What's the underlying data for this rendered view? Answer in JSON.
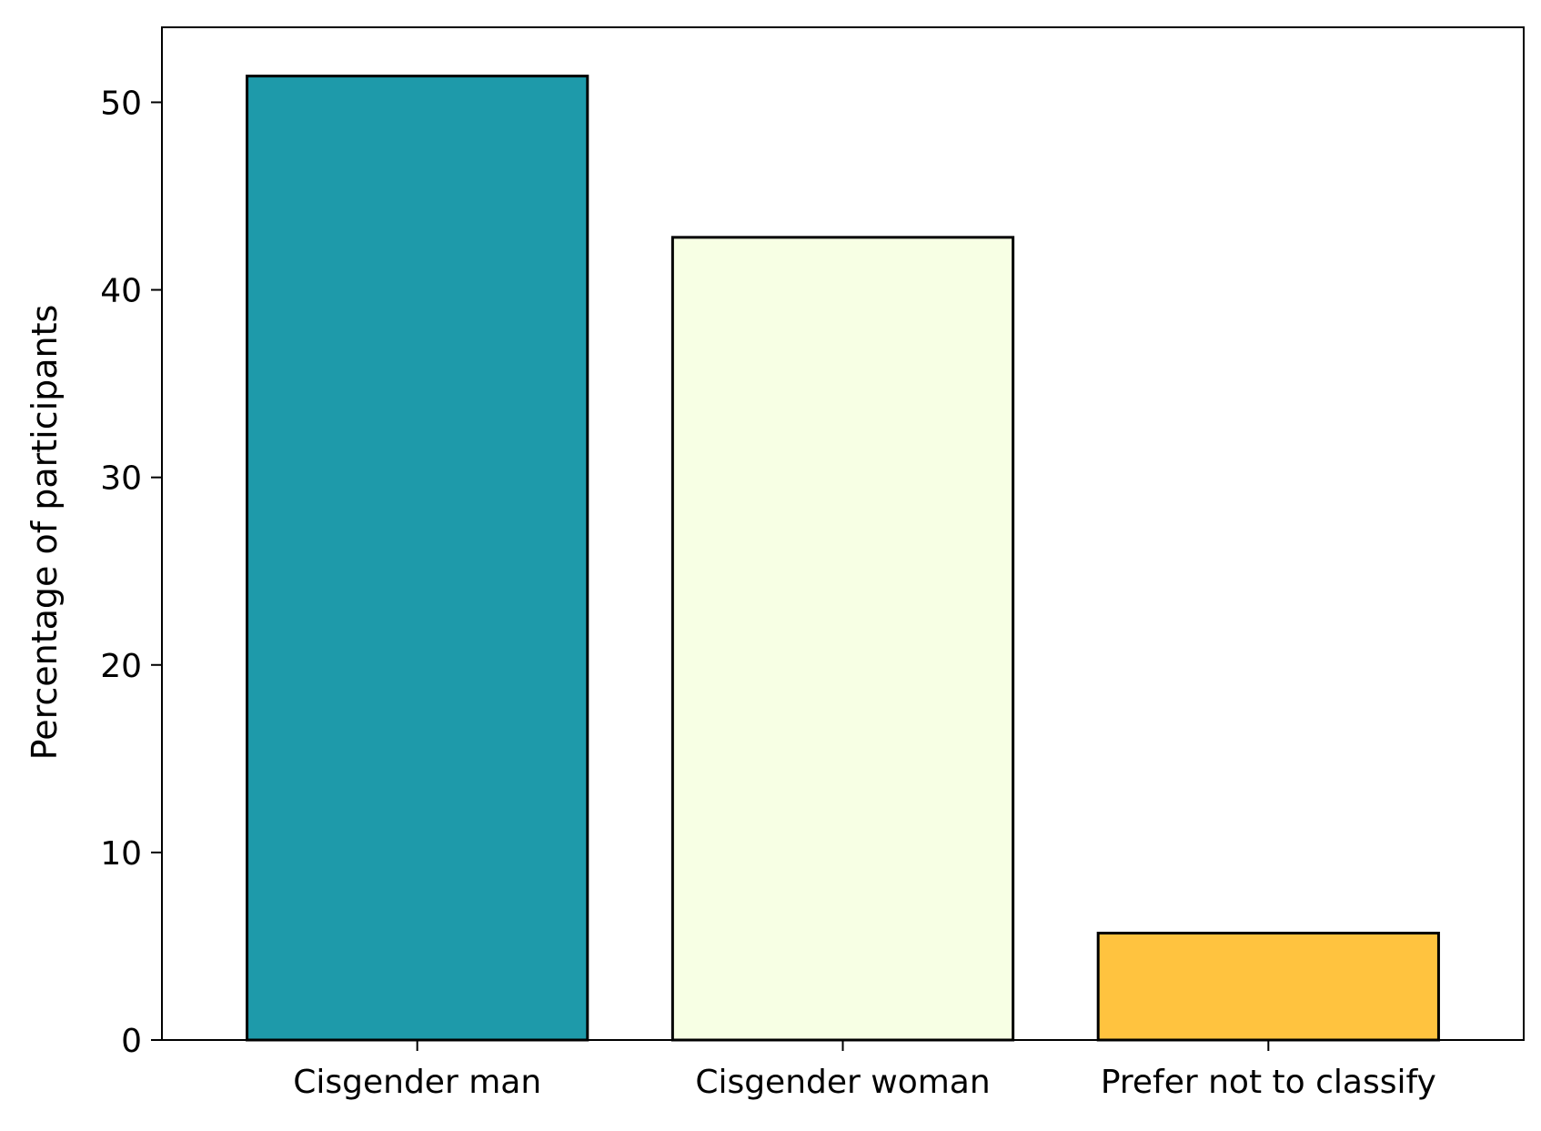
{
  "chart_data": {
    "type": "bar",
    "title": "",
    "xlabel": "",
    "ylabel": "Percentage of participants",
    "categories": [
      "Cisgender man",
      "Cisgender woman",
      "Prefer not to classify"
    ],
    "values": [
      51.4,
      42.8,
      5.7
    ],
    "colors": [
      "#1e9aaa",
      "#f7ffe4",
      "#ffc33f"
    ],
    "edge_color": "#000000",
    "ylim": [
      0,
      54
    ],
    "yticks": [
      0,
      10,
      20,
      30,
      40,
      50
    ],
    "grid": false,
    "legend": "none"
  }
}
